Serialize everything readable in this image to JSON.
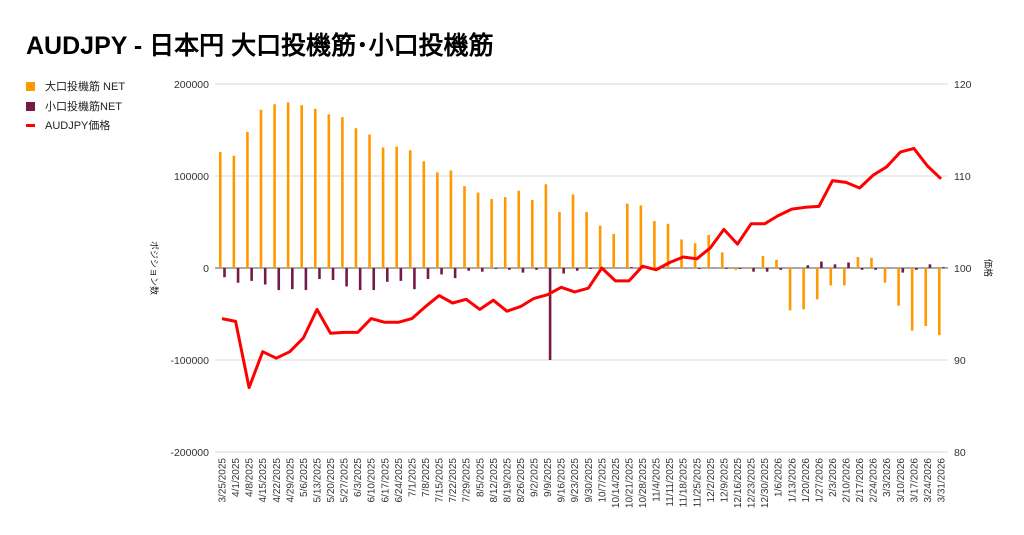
{
  "title": "AUDJPY - 日本円 大口投機筋･小口投機筋",
  "chart_data": {
    "type": "bar+line",
    "title": "AUDJPY - 日本円 大口投機筋･小口投機筋",
    "ylabel": "ポジション数",
    "y2label": "価格",
    "ylim": [
      -200000,
      200000
    ],
    "y2lim": [
      80,
      120
    ],
    "yticks": [
      "200000",
      "100000",
      "0",
      "-100000",
      "-200000"
    ],
    "y2ticks": [
      "120",
      "110",
      "100",
      "90",
      "80"
    ],
    "grid": true,
    "legend_position": "top-left",
    "categories": [
      "3/25/2025",
      "4/1/2025",
      "4/8/2025",
      "4/15/2025",
      "4/22/2025",
      "4/29/2025",
      "5/6/2025",
      "5/13/2025",
      "5/20/2025",
      "5/27/2025",
      "6/3/2025",
      "6/10/2025",
      "6/17/2025",
      "6/24/2025",
      "7/1/2025",
      "7/8/2025",
      "7/15/2025",
      "7/22/2025",
      "7/29/2025",
      "8/5/2025",
      "8/12/2025",
      "8/19/2025",
      "8/26/2025",
      "9/2/2025",
      "9/9/2025",
      "9/16/2025",
      "9/23/2025",
      "9/30/2025",
      "10/7/2025",
      "10/14/2025",
      "10/21/2025",
      "10/28/2025",
      "11/4/2025",
      "11/11/2025",
      "11/18/2025",
      "11/25/2025",
      "12/2/2025",
      "12/9/2025",
      "12/16/2025",
      "12/23/2025",
      "12/30/2025",
      "1/6/2026",
      "1/13/2026",
      "1/20/2026",
      "1/27/2026",
      "2/3/2026",
      "2/10/2026",
      "2/17/2026",
      "2/24/2026",
      "3/3/2026",
      "3/10/2026",
      "3/17/2026",
      "3/24/2026",
      "3/31/2026"
    ],
    "series": [
      {
        "name": "大口投機筋  NET",
        "type": "bar",
        "axis": "left",
        "color": "#ff9900",
        "values": [
          126000,
          122000,
          148000,
          172000,
          178000,
          180000,
          177000,
          173000,
          167000,
          164000,
          152000,
          145000,
          131000,
          132000,
          128000,
          116000,
          104000,
          106000,
          89000,
          82000,
          75000,
          77000,
          84000,
          74000,
          91000,
          61000,
          80000,
          61000,
          46000,
          37000,
          70000,
          68000,
          51000,
          48000,
          31000,
          27000,
          36000,
          17000,
          -2000,
          1000,
          13000,
          9000,
          -46000,
          -45000,
          -34000,
          -19000,
          -19000,
          12000,
          11000,
          -16000,
          -41000,
          -68000,
          -63000,
          -73000
        ]
      },
      {
        "name": "小口投機筋NET",
        "type": "bar",
        "axis": "left",
        "color": "#741b47",
        "values": [
          -10000,
          -16000,
          -14000,
          -18000,
          -24000,
          -23000,
          -24000,
          -12000,
          -13000,
          -20000,
          -24000,
          -24000,
          -15000,
          -14000,
          -23000,
          -12000,
          -7000,
          -11000,
          -3000,
          -4000,
          -1000,
          -2000,
          -5000,
          -2000,
          -100000,
          -6000,
          -3000,
          -1000,
          0,
          0,
          1000,
          0,
          1000,
          0,
          0,
          -1000,
          0,
          -1000,
          -1000,
          -4000,
          -4000,
          -2000,
          0,
          3000,
          7000,
          4000,
          6000,
          -2000,
          -2000,
          0,
          -5000,
          -2000,
          4000,
          1000
        ]
      },
      {
        "name": "AUDJPY価格",
        "type": "line",
        "axis": "right",
        "color": "#ff0000",
        "values": [
          94.5,
          94.2,
          87.0,
          90.9,
          90.2,
          90.9,
          92.4,
          95.5,
          92.9,
          93.0,
          93.0,
          94.5,
          94.1,
          94.1,
          94.5,
          95.8,
          97.0,
          96.2,
          96.6,
          95.5,
          96.5,
          95.3,
          95.8,
          96.7,
          97.1,
          97.9,
          97.4,
          97.8,
          100.0,
          98.6,
          98.6,
          100.2,
          99.8,
          100.6,
          101.2,
          101.0,
          102.2,
          104.2,
          102.6,
          104.8,
          104.8,
          105.7,
          106.4,
          106.6,
          106.7,
          109.5,
          109.3,
          108.7,
          110.1,
          111.0,
          112.6,
          113.0,
          111.1,
          109.7
        ]
      }
    ]
  }
}
